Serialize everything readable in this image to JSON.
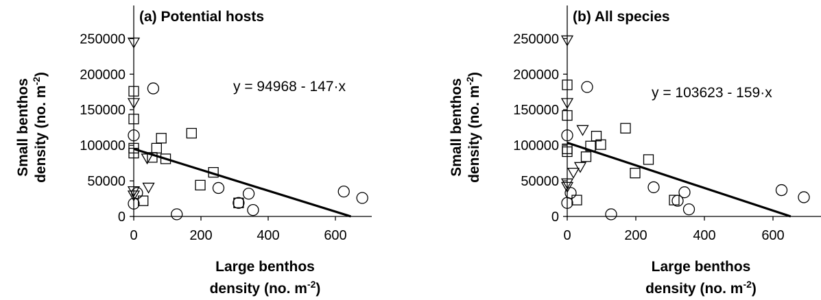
{
  "chart_data": [
    {
      "type": "scatter",
      "title": "(a) Potential hosts",
      "xlabel": "Large benthos density (no. m-2)",
      "xlabel_lines": [
        "Large benthos",
        "density (no. m",
        "-2",
        ")"
      ],
      "ylabel": "Small benthos density (no. m-2)",
      "ylabel_lines": [
        "Small benthos",
        "density (no. m",
        "-2",
        ")"
      ],
      "xlim": [
        0,
        700
      ],
      "ylim": [
        0,
        260000
      ],
      "xticks": [
        0,
        200,
        400,
        600
      ],
      "yticks": [
        0,
        50000,
        100000,
        150000,
        200000,
        250000
      ],
      "equation": "y = 94968 - 147·x",
      "regression": {
        "intercept": 94968,
        "slope": -147
      },
      "series": [
        {
          "marker": "circle",
          "points": [
            [
              0,
              114000
            ],
            [
              0,
              18000
            ],
            [
              10,
              33000
            ],
            [
              58,
              180000
            ],
            [
              128,
              3000
            ],
            [
              252,
              40000
            ],
            [
              312,
              19000
            ],
            [
              342,
              32000
            ],
            [
              355,
              9000
            ],
            [
              625,
              35000
            ],
            [
              680,
              26000
            ]
          ]
        },
        {
          "marker": "square",
          "points": [
            [
              0,
              176000
            ],
            [
              0,
              137000
            ],
            [
              0,
              96000
            ],
            [
              0,
              89000
            ],
            [
              28,
              22000
            ],
            [
              55,
              83000
            ],
            [
              68,
              96000
            ],
            [
              82,
              110000
            ],
            [
              95,
              81000
            ],
            [
              172,
              117000
            ],
            [
              198,
              44000
            ],
            [
              237,
              62000
            ],
            [
              312,
              19000
            ]
          ]
        },
        {
          "marker": "triangle-down",
          "points": [
            [
              0,
              245000
            ],
            [
              0,
              160000
            ],
            [
              0,
              36000
            ],
            [
              0,
              30000
            ],
            [
              40,
              82000
            ],
            [
              44,
              41000
            ]
          ]
        }
      ]
    },
    {
      "type": "scatter",
      "title": "(b) All species",
      "xlabel": "Large benthos density (no. m-2)",
      "xlabel_lines": [
        "Large benthos",
        "density (no. m",
        "-2",
        ")"
      ],
      "ylabel": "Small benthos density (no. m-2)",
      "ylabel_lines": [
        "Small benthos",
        "density (no. m",
        "-2",
        ")"
      ],
      "xlim": [
        0,
        700
      ],
      "ylim": [
        0,
        260000
      ],
      "xticks": [
        0,
        200,
        400,
        600
      ],
      "yticks": [
        0,
        50000,
        100000,
        150000,
        200000,
        250000
      ],
      "equation": "y = 103623 - 159·x",
      "regression": {
        "intercept": 103623,
        "slope": -159
      },
      "series": [
        {
          "marker": "circle",
          "points": [
            [
              0,
              114000
            ],
            [
              0,
              19000
            ],
            [
              10,
              33000
            ],
            [
              58,
              182000
            ],
            [
              128,
              3000
            ],
            [
              252,
              41000
            ],
            [
              322,
              22000
            ],
            [
              342,
              34000
            ],
            [
              355,
              10000
            ],
            [
              625,
              37000
            ],
            [
              690,
              27000
            ]
          ]
        },
        {
          "marker": "square",
          "points": [
            [
              0,
              185000
            ],
            [
              0,
              142000
            ],
            [
              0,
              95000
            ],
            [
              0,
              91000
            ],
            [
              28,
              23000
            ],
            [
              55,
              84000
            ],
            [
              68,
              99000
            ],
            [
              85,
              113000
            ],
            [
              98,
              101000
            ],
            [
              170,
              124000
            ],
            [
              198,
              61000
            ],
            [
              237,
              80000
            ],
            [
              312,
              23000
            ]
          ]
        },
        {
          "marker": "triangle-down",
          "points": [
            [
              0,
              248000
            ],
            [
              0,
              160000
            ],
            [
              0,
              47000
            ],
            [
              0,
              42000
            ],
            [
              18,
              62000
            ],
            [
              38,
              70000
            ],
            [
              45,
              122000
            ]
          ]
        }
      ]
    }
  ]
}
